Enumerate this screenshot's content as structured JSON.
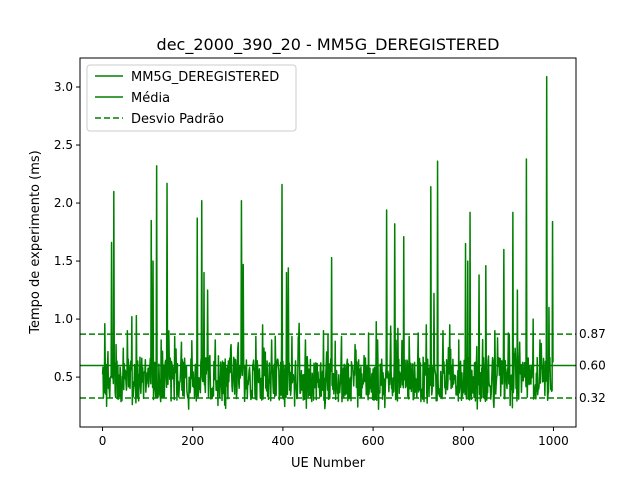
{
  "chart_data": {
    "type": "line",
    "title": "dec_2000_390_20 - MM5G_DEREGISTERED",
    "xlabel": "UE Number",
    "ylabel": "Tempo de experimento (ms)",
    "xlim": [
      -50,
      1050
    ],
    "ylim": [
      0.07,
      3.25
    ],
    "x_ticks": [
      0,
      200,
      400,
      600,
      800,
      1000
    ],
    "y_ticks": [
      0.5,
      1.0,
      1.5,
      2.0,
      2.5,
      3.0
    ],
    "x_tick_labels": [
      "0",
      "200",
      "400",
      "600",
      "800",
      "1000"
    ],
    "y_tick_labels": [
      "0.5",
      "1.0",
      "1.5",
      "2.0",
      "2.5",
      "3.0"
    ],
    "grid": false,
    "legend_position": "top-left",
    "n_points": 1000,
    "series": [
      {
        "name": "MM5G_DEREGISTERED",
        "style": "solid",
        "color": "#008000",
        "baseline": 0.6,
        "noise_amplitude": 0.32,
        "spikes": [
          {
            "x": 5,
            "y": 0.96
          },
          {
            "x": 12,
            "y": 0.72
          },
          {
            "x": 20,
            "y": 1.66
          },
          {
            "x": 25,
            "y": 2.1
          },
          {
            "x": 30,
            "y": 0.78
          },
          {
            "x": 55,
            "y": 0.9
          },
          {
            "x": 65,
            "y": 1.02
          },
          {
            "x": 75,
            "y": 1.03
          },
          {
            "x": 95,
            "y": 0.65
          },
          {
            "x": 108,
            "y": 1.85
          },
          {
            "x": 112,
            "y": 1.5
          },
          {
            "x": 120,
            "y": 2.32
          },
          {
            "x": 130,
            "y": 0.82
          },
          {
            "x": 143,
            "y": 2.17
          },
          {
            "x": 160,
            "y": 0.85
          },
          {
            "x": 175,
            "y": 0.8
          },
          {
            "x": 210,
            "y": 1.87
          },
          {
            "x": 220,
            "y": 2.02
          },
          {
            "x": 225,
            "y": 1.4
          },
          {
            "x": 233,
            "y": 1.25
          },
          {
            "x": 250,
            "y": 0.82
          },
          {
            "x": 285,
            "y": 0.78
          },
          {
            "x": 300,
            "y": 0.75
          },
          {
            "x": 308,
            "y": 2.02
          },
          {
            "x": 312,
            "y": 1.47
          },
          {
            "x": 340,
            "y": 0.85
          },
          {
            "x": 355,
            "y": 0.95
          },
          {
            "x": 375,
            "y": 0.82
          },
          {
            "x": 398,
            "y": 2.16
          },
          {
            "x": 408,
            "y": 1.4
          },
          {
            "x": 412,
            "y": 1.44
          },
          {
            "x": 420,
            "y": 0.85
          },
          {
            "x": 450,
            "y": 0.82
          },
          {
            "x": 490,
            "y": 0.9
          },
          {
            "x": 508,
            "y": 1.53
          },
          {
            "x": 530,
            "y": 0.85
          },
          {
            "x": 560,
            "y": 0.78
          },
          {
            "x": 590,
            "y": 0.88
          },
          {
            "x": 610,
            "y": 0.82
          },
          {
            "x": 630,
            "y": 1.94
          },
          {
            "x": 648,
            "y": 1.82
          },
          {
            "x": 655,
            "y": 0.92
          },
          {
            "x": 668,
            "y": 1.71
          },
          {
            "x": 680,
            "y": 0.85
          },
          {
            "x": 700,
            "y": 0.88
          },
          {
            "x": 718,
            "y": 0.95
          },
          {
            "x": 728,
            "y": 2.14
          },
          {
            "x": 735,
            "y": 1.22
          },
          {
            "x": 743,
            "y": 2.36
          },
          {
            "x": 755,
            "y": 0.9
          },
          {
            "x": 770,
            "y": 0.95
          },
          {
            "x": 790,
            "y": 0.82
          },
          {
            "x": 805,
            "y": 1.65
          },
          {
            "x": 810,
            "y": 1.5
          },
          {
            "x": 815,
            "y": 1.92
          },
          {
            "x": 835,
            "y": 1.38
          },
          {
            "x": 850,
            "y": 1.46
          },
          {
            "x": 870,
            "y": 0.9
          },
          {
            "x": 890,
            "y": 1.6
          },
          {
            "x": 900,
            "y": 0.88
          },
          {
            "x": 910,
            "y": 1.92
          },
          {
            "x": 920,
            "y": 1.25
          },
          {
            "x": 940,
            "y": 2.38
          },
          {
            "x": 955,
            "y": 1.0
          },
          {
            "x": 970,
            "y": 0.82
          },
          {
            "x": 985,
            "y": 3.09
          },
          {
            "x": 990,
            "y": 1.1
          },
          {
            "x": 998,
            "y": 1.84
          }
        ]
      },
      {
        "name": "Média",
        "style": "solid",
        "color": "#008000",
        "y": 0.6
      },
      {
        "name": "Desvio Padrão",
        "style": "dashed",
        "color": "#008000",
        "y": [
          0.32,
          0.87
        ]
      }
    ],
    "annotations": [
      {
        "text": "0.87",
        "y": 0.87
      },
      {
        "text": "0.60",
        "y": 0.6
      },
      {
        "text": "0.32",
        "y": 0.32
      }
    ]
  }
}
